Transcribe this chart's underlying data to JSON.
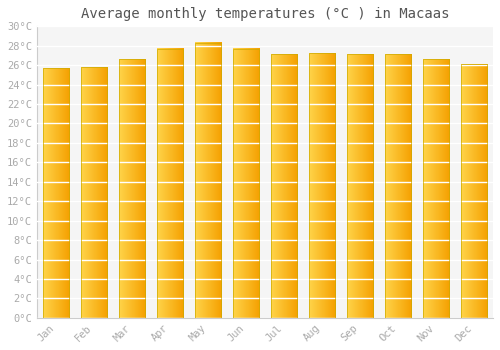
{
  "title": "Average monthly temperatures (°C ) in Macaas",
  "months": [
    "Jan",
    "Feb",
    "Mar",
    "Apr",
    "May",
    "Jun",
    "Jul",
    "Aug",
    "Sep",
    "Oct",
    "Nov",
    "Dec"
  ],
  "temperatures": [
    25.7,
    25.8,
    26.6,
    27.7,
    28.3,
    27.7,
    27.1,
    27.2,
    27.1,
    27.1,
    26.6,
    26.1
  ],
  "bar_color_left": "#FFD44A",
  "bar_color_right": "#F5A000",
  "ylim": [
    0,
    30
  ],
  "yticks": [
    0,
    2,
    4,
    6,
    8,
    10,
    12,
    14,
    16,
    18,
    20,
    22,
    24,
    26,
    28,
    30
  ],
  "ytick_labels": [
    "0°C",
    "2°C",
    "4°C",
    "6°C",
    "8°C",
    "10°C",
    "12°C",
    "14°C",
    "16°C",
    "18°C",
    "20°C",
    "22°C",
    "24°C",
    "26°C",
    "28°C",
    "30°C"
  ],
  "background_color": "#ffffff",
  "plot_bg_color": "#f5f5f5",
  "grid_color": "#ffffff",
  "title_fontsize": 10,
  "tick_fontsize": 7.5,
  "tick_font_color": "#aaaaaa",
  "title_color": "#555555",
  "bar_width": 0.7,
  "bar_outline_color": "#ccaa00"
}
